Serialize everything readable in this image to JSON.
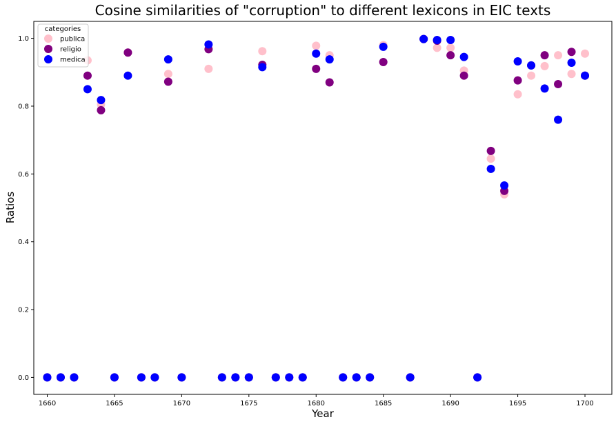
{
  "chart_data": {
    "type": "scatter",
    "title": "Cosine similarities of \"corruption\" to different lexicons in EIC texts",
    "xlabel": "Year",
    "ylabel": "Ratios",
    "xlim": [
      1659,
      1702
    ],
    "ylim": [
      -0.05,
      1.05
    ],
    "xticks": [
      1660,
      1665,
      1670,
      1675,
      1680,
      1685,
      1690,
      1695,
      1700
    ],
    "yticks": [
      0.0,
      0.2,
      0.4,
      0.6,
      0.8,
      1.0
    ],
    "legend": {
      "title": "categories",
      "placement": "top-left"
    },
    "grid": false,
    "series": [
      {
        "name": "publica",
        "color": "#ffc0cb",
        "points": [
          [
            1660,
            0
          ],
          [
            1661,
            0
          ],
          [
            1662,
            0
          ],
          [
            1663,
            0.935
          ],
          [
            1664,
            0.805
          ],
          [
            1665,
            0
          ],
          [
            1666,
            0.958
          ],
          [
            1667,
            0
          ],
          [
            1668,
            0
          ],
          [
            1669,
            0.895
          ],
          [
            1670,
            0
          ],
          [
            1672,
            0.91
          ],
          [
            1673,
            0
          ],
          [
            1674,
            0
          ],
          [
            1675,
            0
          ],
          [
            1676,
            0.962
          ],
          [
            1677,
            0
          ],
          [
            1678,
            0
          ],
          [
            1679,
            0
          ],
          [
            1680,
            0.978
          ],
          [
            1681,
            0.95
          ],
          [
            1682,
            0
          ],
          [
            1683,
            0
          ],
          [
            1684,
            0
          ],
          [
            1685,
            0.98
          ],
          [
            1687,
            0
          ],
          [
            1688,
            0.998
          ],
          [
            1689,
            0.972
          ],
          [
            1690,
            0.972
          ],
          [
            1691,
            0.905
          ],
          [
            1692,
            0
          ],
          [
            1693,
            0.645
          ],
          [
            1694,
            0.54
          ],
          [
            1695,
            0.835
          ],
          [
            1696,
            0.89
          ],
          [
            1697,
            0.918
          ],
          [
            1698,
            0.95
          ],
          [
            1699,
            0.895
          ],
          [
            1700,
            0.955
          ]
        ]
      },
      {
        "name": "religio",
        "color": "#800080",
        "points": [
          [
            1660,
            0
          ],
          [
            1661,
            0
          ],
          [
            1662,
            0
          ],
          [
            1663,
            0.89
          ],
          [
            1664,
            0.788
          ],
          [
            1665,
            0
          ],
          [
            1666,
            0.958
          ],
          [
            1667,
            0
          ],
          [
            1668,
            0
          ],
          [
            1669,
            0.872
          ],
          [
            1670,
            0
          ],
          [
            1672,
            0.968
          ],
          [
            1673,
            0
          ],
          [
            1674,
            0
          ],
          [
            1675,
            0
          ],
          [
            1676,
            0.922
          ],
          [
            1677,
            0
          ],
          [
            1678,
            0
          ],
          [
            1679,
            0
          ],
          [
            1680,
            0.91
          ],
          [
            1681,
            0.87
          ],
          [
            1682,
            0
          ],
          [
            1683,
            0
          ],
          [
            1684,
            0
          ],
          [
            1685,
            0.93
          ],
          [
            1687,
            0
          ],
          [
            1688,
            0.998
          ],
          [
            1689,
            0.993
          ],
          [
            1690,
            0.95
          ],
          [
            1691,
            0.89
          ],
          [
            1692,
            0
          ],
          [
            1693,
            0.668
          ],
          [
            1694,
            0.55
          ],
          [
            1695,
            0.876
          ],
          [
            1696,
            0.92
          ],
          [
            1697,
            0.95
          ],
          [
            1698,
            0.865
          ],
          [
            1699,
            0.96
          ],
          [
            1700,
            0.89
          ]
        ]
      },
      {
        "name": "medica",
        "color": "#0000ff",
        "points": [
          [
            1660,
            0
          ],
          [
            1661,
            0
          ],
          [
            1662,
            0
          ],
          [
            1663,
            0.85
          ],
          [
            1664,
            0.818
          ],
          [
            1665,
            0
          ],
          [
            1666,
            0.89
          ],
          [
            1667,
            0
          ],
          [
            1668,
            0
          ],
          [
            1669,
            0.938
          ],
          [
            1670,
            0
          ],
          [
            1672,
            0.982
          ],
          [
            1673,
            0
          ],
          [
            1674,
            0
          ],
          [
            1675,
            0
          ],
          [
            1676,
            0.915
          ],
          [
            1677,
            0
          ],
          [
            1678,
            0
          ],
          [
            1679,
            0
          ],
          [
            1680,
            0.955
          ],
          [
            1681,
            0.938
          ],
          [
            1682,
            0
          ],
          [
            1683,
            0
          ],
          [
            1684,
            0
          ],
          [
            1685,
            0.975
          ],
          [
            1687,
            0
          ],
          [
            1688,
            0.998
          ],
          [
            1689,
            0.995
          ],
          [
            1690,
            0.995
          ],
          [
            1691,
            0.945
          ],
          [
            1692,
            0
          ],
          [
            1693,
            0.615
          ],
          [
            1694,
            0.566
          ],
          [
            1695,
            0.932
          ],
          [
            1696,
            0.92
          ],
          [
            1697,
            0.852
          ],
          [
            1698,
            0.76
          ],
          [
            1699,
            0.928
          ],
          [
            1700,
            0.89
          ]
        ]
      }
    ]
  }
}
